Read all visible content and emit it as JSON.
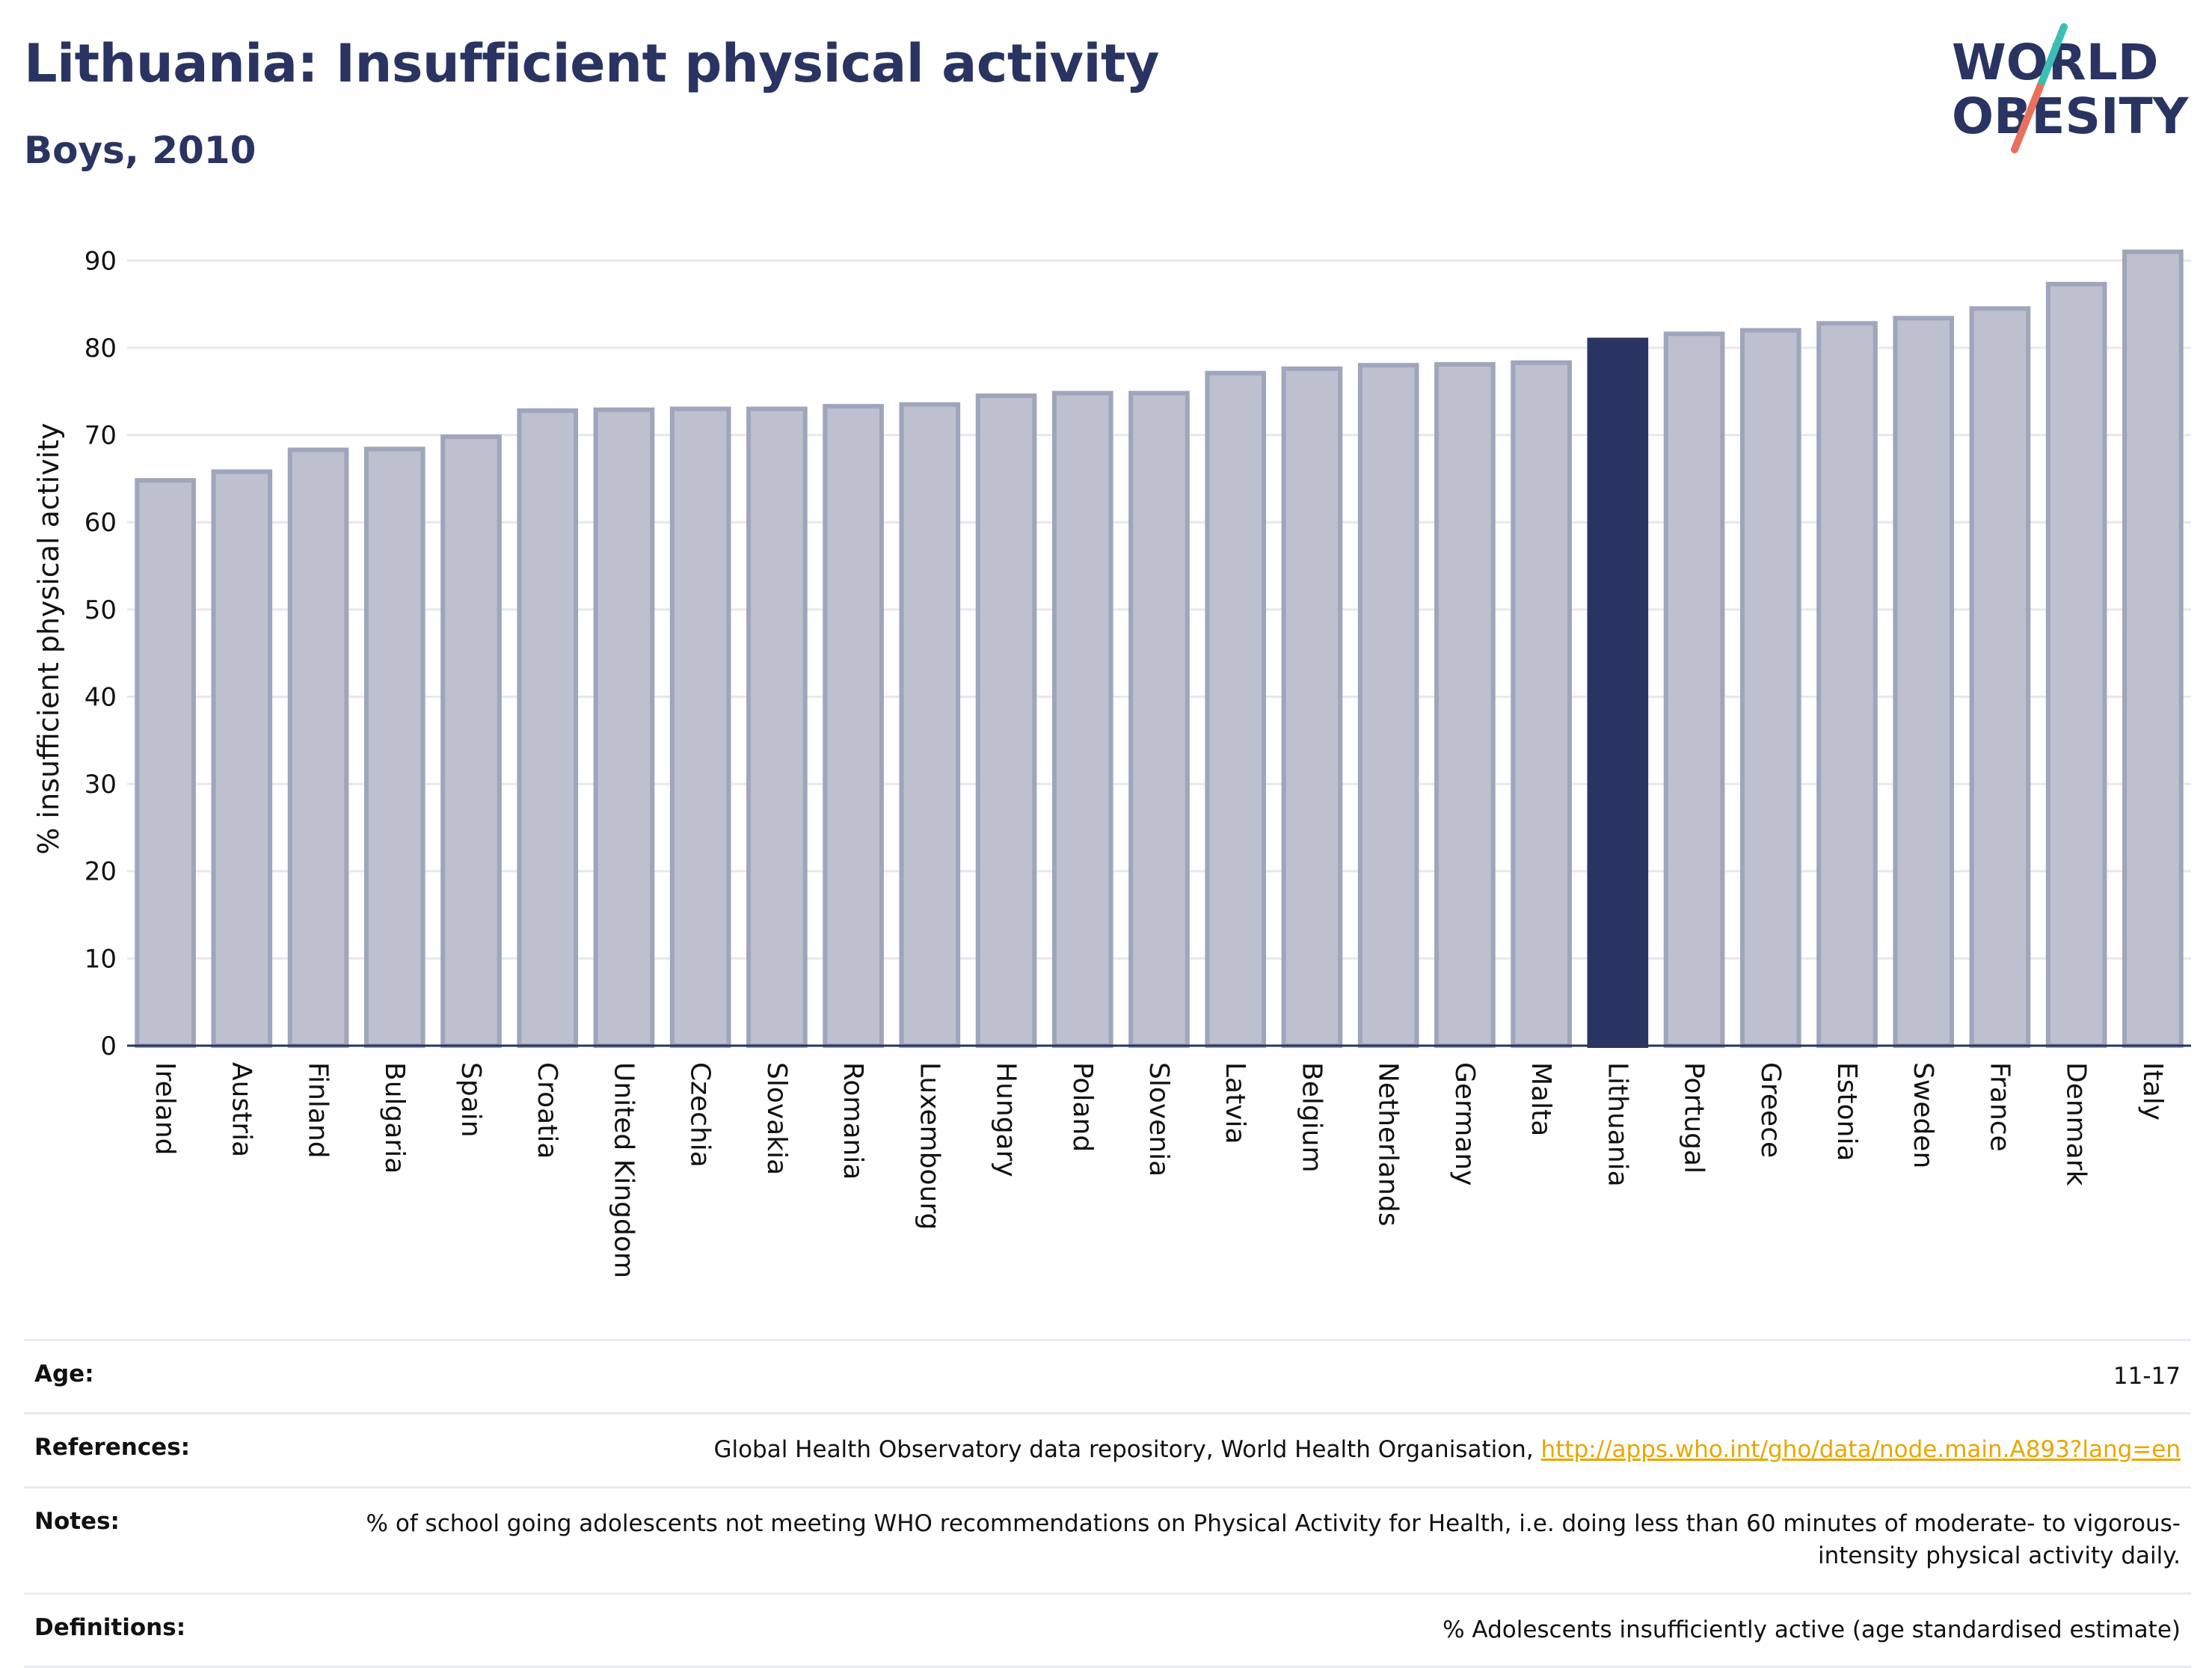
{
  "header": {
    "title": "Lithuania: Insufficient physical activity",
    "subtitle": "Boys, 2010"
  },
  "logo": {
    "line1": "WORLD",
    "line2": "OBESITY",
    "colors": {
      "text": "#2a3462",
      "slash_teal": "#3bbfb5",
      "slash_coral": "#e8705c"
    }
  },
  "colors": {
    "bar_default": "#bcc0cf",
    "bar_default_stroke": "#9fa5bb",
    "bar_highlight": "#2a3462",
    "grid": "#e6e8ee",
    "axis": "#2a3462",
    "link": "#e8a700"
  },
  "chart_data": {
    "type": "bar",
    "ylabel": "% insufficient physical activity",
    "xlabel": "",
    "ylim": [
      0,
      95
    ],
    "yticks": [
      0,
      10,
      20,
      30,
      40,
      50,
      60,
      70,
      80,
      90
    ],
    "grid": true,
    "highlight": "Lithuania",
    "categories": [
      "Ireland",
      "Austria",
      "Finland",
      "Bulgaria",
      "Spain",
      "Croatia",
      "United Kingdom",
      "Czechia",
      "Slovakia",
      "Romania",
      "Luxembourg",
      "Hungary",
      "Poland",
      "Slovenia",
      "Latvia",
      "Belgium",
      "Netherlands",
      "Germany",
      "Malta",
      "Lithuania",
      "Portugal",
      "Greece",
      "Estonia",
      "Sweden",
      "France",
      "Denmark",
      "Italy"
    ],
    "values": [
      64.8,
      65.8,
      68.3,
      68.4,
      69.8,
      72.8,
      72.9,
      73.0,
      73.0,
      73.3,
      73.5,
      74.5,
      74.8,
      74.8,
      77.1,
      77.6,
      78.0,
      78.1,
      78.3,
      80.9,
      81.6,
      82.0,
      82.8,
      83.4,
      84.5,
      87.3,
      91.0
    ]
  },
  "meta": {
    "age_label": "Age:",
    "age_value": "11-17",
    "references_label": "References:",
    "references_text": "Global Health Observatory data repository, World Health Organisation,",
    "references_link": "http://apps.who.int/gho/data/node.main.A893?lang=en",
    "notes_label": "Notes:",
    "notes_text": "% of school going adolescents not meeting WHO recommendations on Physical Activity for Health, i.e. doing less than 60 minutes of moderate- to vigorous-intensity physical activity daily.",
    "definitions_label": "Definitions:",
    "definitions_text": "% Adolescents insufficiently active (age standardised estimate)"
  }
}
